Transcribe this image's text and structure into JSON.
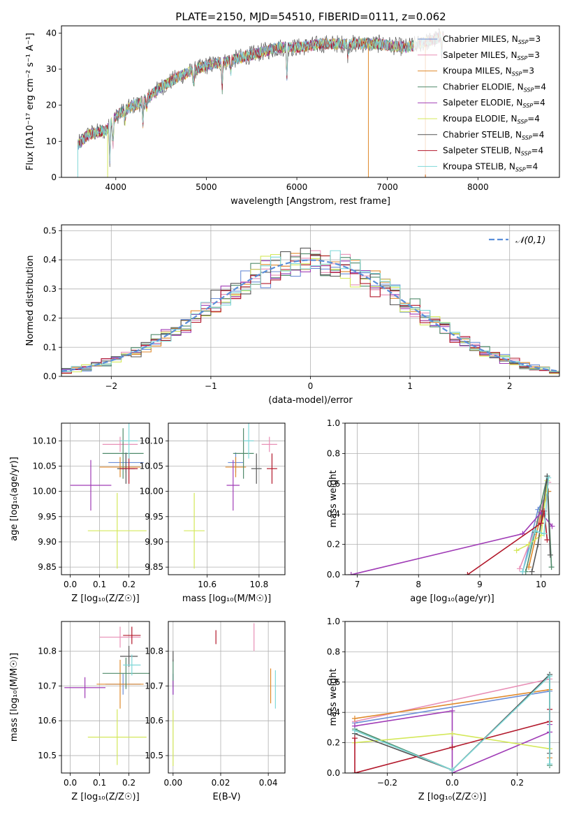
{
  "figure": {
    "title": "PLATE=2150, MJD=54510, FIBERID=0111, z=0.062"
  },
  "colors": {
    "Chabrier MILES": "#6b8ed6",
    "Salpeter MILES": "#e88fb6",
    "Kroupa MILES": "#e08a2c",
    "Chabrier ELODIE": "#4f8a6a",
    "Salpeter ELODIE": "#a03cb6",
    "Kroupa ELODIE": "#d4e85a",
    "Chabrier STELIB": "#555555",
    "Salpeter STELIB": "#b2182b",
    "Kroupa STELIB": "#7ed8d8",
    "normal_curve": "#5b8fd9"
  },
  "chart_data": [
    {
      "id": "spectrum",
      "type": "line",
      "xlabel": "wavelength [Angstrom, rest frame]",
      "ylabel": "Flux [fλ10⁻¹⁷ erg cm⁻² s⁻¹ A⁻¹]",
      "xlim": [
        3400,
        8900
      ],
      "ylim": [
        0,
        42
      ],
      "xticks": [
        4000,
        5000,
        6000,
        7000,
        8000
      ],
      "yticks": [
        0,
        10,
        20,
        30,
        40
      ],
      "legend_position": "right",
      "legend": [
        "Chabrier MILES, N_SSP=3",
        "Salpeter MILES, N_SSP=3",
        "Kroupa MILES, N_SSP=3",
        "Chabrier ELODIE, N_SSP=4",
        "Salpeter ELODIE, N_SSP=4",
        "Kroupa ELODIE, N_SSP=4",
        "Chabrier STELIB, N_SSP=4",
        "Salpeter STELIB, N_SSP=4",
        "Kroupa STELIB, N_SSP=4"
      ],
      "continuum": {
        "x": [
          3580,
          3700,
          3900,
          4000,
          4200,
          4300,
          4500,
          4700,
          5000,
          5200,
          5500,
          5800,
          6000,
          6300,
          6600,
          6900,
          7200,
          7500,
          7600
        ],
        "y": [
          9,
          12,
          13,
          17,
          20,
          21,
          25,
          28,
          31,
          32,
          34,
          36,
          36,
          37,
          37,
          37,
          36,
          38,
          39
        ]
      }
    },
    {
      "id": "residual_histogram",
      "type": "histogram",
      "xlabel": "(data-model)/error",
      "ylabel": "Normed distribution",
      "xlim": [
        -2.5,
        2.5
      ],
      "ylim": [
        0,
        0.52
      ],
      "xticks": [
        -2,
        -1,
        0,
        1,
        2
      ],
      "yticks": [
        0.0,
        0.1,
        0.2,
        0.3,
        0.4,
        0.5
      ],
      "legend": [
        "𝒩(0,1)"
      ],
      "bin_width": 0.1
    },
    {
      "id": "age_vs_Z",
      "type": "scatter",
      "xlabel": "Z [log₁₀(Z/Z☉)]",
      "ylabel": "age  [log₁₀(age/yr)]",
      "xlim": [
        -0.03,
        0.27
      ],
      "ylim": [
        9.835,
        10.135
      ],
      "xticks": [
        0.0,
        0.1,
        0.2
      ],
      "yticks": [
        9.85,
        9.9,
        9.95,
        10.0,
        10.05,
        10.1
      ],
      "points": [
        {
          "model": "Chabrier MILES",
          "x": 0.19,
          "y": 10.057,
          "xerr": 0.06,
          "yerr": 0.02
        },
        {
          "model": "Salpeter MILES",
          "x": 0.17,
          "y": 10.093,
          "xerr": 0.06,
          "yerr": 0.015
        },
        {
          "model": "Kroupa MILES",
          "x": 0.17,
          "y": 10.048,
          "xerr": 0.07,
          "yerr": 0.02
        },
        {
          "model": "Chabrier ELODIE",
          "x": 0.18,
          "y": 10.075,
          "xerr": 0.07,
          "yerr": 0.05
        },
        {
          "model": "Salpeter ELODIE",
          "x": 0.07,
          "y": 10.012,
          "xerr": 0.07,
          "yerr": 0.05
        },
        {
          "model": "Kroupa ELODIE",
          "x": 0.16,
          "y": 9.922,
          "xerr": 0.1,
          "yerr": 0.075
        },
        {
          "model": "Chabrier STELIB",
          "x": 0.19,
          "y": 10.045,
          "xerr": 0.03,
          "yerr": 0.03
        },
        {
          "model": "Salpeter STELIB",
          "x": 0.2,
          "y": 10.045,
          "xerr": 0.03,
          "yerr": 0.03
        },
        {
          "model": "Kroupa STELIB",
          "x": 0.2,
          "y": 10.1,
          "xerr": 0.03,
          "yerr": 0.035
        }
      ]
    },
    {
      "id": "age_vs_mass",
      "type": "scatter",
      "xlabel": "mass [log₁₀(M/M☉)]",
      "ylabel": "",
      "xlim": [
        10.45,
        10.9
      ],
      "ylim": [
        9.835,
        10.135
      ],
      "xticks": [
        10.6,
        10.8
      ],
      "yticks": [
        9.85,
        9.9,
        9.95,
        10.0,
        10.05,
        10.1
      ],
      "points": [
        {
          "model": "Chabrier MILES",
          "x": 10.71,
          "y": 10.057,
          "xerr": 0.03,
          "yerr": 0.02
        },
        {
          "model": "Salpeter MILES",
          "x": 10.84,
          "y": 10.093,
          "xerr": 0.03,
          "yerr": 0.015
        },
        {
          "model": "Kroupa MILES",
          "x": 10.71,
          "y": 10.048,
          "xerr": 0.04,
          "yerr": 0.02
        },
        {
          "model": "Chabrier ELODIE",
          "x": 10.74,
          "y": 10.075,
          "xerr": 0.04,
          "yerr": 0.05
        },
        {
          "model": "Salpeter ELODIE",
          "x": 10.7,
          "y": 10.012,
          "xerr": 0.025,
          "yerr": 0.05
        },
        {
          "model": "Kroupa ELODIE",
          "x": 10.55,
          "y": 9.922,
          "xerr": 0.04,
          "yerr": 0.075
        },
        {
          "model": "Chabrier STELIB",
          "x": 10.79,
          "y": 10.045,
          "xerr": 0.02,
          "yerr": 0.03
        },
        {
          "model": "Salpeter STELIB",
          "x": 10.85,
          "y": 10.045,
          "xerr": 0.02,
          "yerr": 0.03
        },
        {
          "model": "Kroupa STELIB",
          "x": 10.76,
          "y": 10.1,
          "xerr": 0.02,
          "yerr": 0.035
        }
      ]
    },
    {
      "id": "mass_vs_Z",
      "type": "scatter",
      "xlabel": "Z [log₁₀(Z/Z☉)]",
      "ylabel": "mass [log₁₀(M/M☉)]",
      "xlim": [
        -0.03,
        0.27
      ],
      "ylim": [
        10.45,
        10.885
      ],
      "xticks": [
        0.0,
        0.1,
        0.2
      ],
      "yticks": [
        10.5,
        10.6,
        10.7,
        10.8
      ],
      "points": [
        {
          "model": "Chabrier MILES",
          "x": 0.18,
          "y": 10.705,
          "xerr": 0.06,
          "yerr": 0.03
        },
        {
          "model": "Salpeter MILES",
          "x": 0.17,
          "y": 10.84,
          "xerr": 0.07,
          "yerr": 0.03
        },
        {
          "model": "Kroupa MILES",
          "x": 0.17,
          "y": 10.705,
          "xerr": 0.08,
          "yerr": 0.07
        },
        {
          "model": "Chabrier ELODIE",
          "x": 0.19,
          "y": 10.736,
          "xerr": 0.08,
          "yerr": 0.045
        },
        {
          "model": "Salpeter ELODIE",
          "x": 0.05,
          "y": 10.695,
          "xerr": 0.07,
          "yerr": 0.03
        },
        {
          "model": "Kroupa ELODIE",
          "x": 0.16,
          "y": 10.553,
          "xerr": 0.1,
          "yerr": 0.08
        },
        {
          "model": "Chabrier STELIB",
          "x": 0.2,
          "y": 10.785,
          "xerr": 0.03,
          "yerr": 0.03
        },
        {
          "model": "Salpeter STELIB",
          "x": 0.21,
          "y": 10.845,
          "xerr": 0.03,
          "yerr": 0.025
        },
        {
          "model": "Kroupa STELIB",
          "x": 0.21,
          "y": 10.76,
          "xerr": 0.03,
          "yerr": 0.03
        }
      ]
    },
    {
      "id": "mass_vs_ebv",
      "type": "scatter",
      "xlabel": "E(B-V)",
      "ylabel": "",
      "xlim": [
        -0.002,
        0.047
      ],
      "ylim": [
        10.45,
        10.885
      ],
      "xticks": [
        0.0,
        0.02,
        0.04
      ],
      "yticks": [
        10.5,
        10.6,
        10.7,
        10.8
      ],
      "points": [
        {
          "model": "Chabrier MILES",
          "x": 0.0,
          "y": 10.705,
          "xerr": 0.0,
          "yerr": 0.03
        },
        {
          "model": "Salpeter MILES",
          "x": 0.034,
          "y": 10.84,
          "xerr": 0.0,
          "yerr": 0.04
        },
        {
          "model": "Kroupa MILES",
          "x": 0.041,
          "y": 10.7,
          "xerr": 0.0,
          "yerr": 0.05
        },
        {
          "model": "Chabrier ELODIE",
          "x": 0.0,
          "y": 10.736,
          "xerr": 0.0,
          "yerr": 0.04
        },
        {
          "model": "Salpeter ELODIE",
          "x": 0.0,
          "y": 10.695,
          "xerr": 0.0,
          "yerr": 0.02
        },
        {
          "model": "Kroupa ELODIE",
          "x": 0.0,
          "y": 10.55,
          "xerr": 0.0,
          "yerr": 0.08
        },
        {
          "model": "Chabrier STELIB",
          "x": 0.0,
          "y": 10.785,
          "xerr": 0.0,
          "yerr": 0.015
        },
        {
          "model": "Salpeter STELIB",
          "x": 0.018,
          "y": 10.84,
          "xerr": 0.0,
          "yerr": 0.02
        },
        {
          "model": "Kroupa STELIB",
          "x": 0.043,
          "y": 10.69,
          "xerr": 0.0,
          "yerr": 0.055
        }
      ]
    },
    {
      "id": "mass_weight_vs_age",
      "type": "line",
      "xlabel": "age  [log₁₀(age/yr)]",
      "ylabel": "mass weight",
      "xlim": [
        6.8,
        10.3
      ],
      "ylim": [
        0,
        1.0
      ],
      "xticks": [
        7,
        8,
        9,
        10
      ],
      "yticks": [
        0.0,
        0.2,
        0.4,
        0.6,
        0.8,
        1.0
      ],
      "series": [
        {
          "model": "Chabrier MILES",
          "x": [
            9.7,
            9.95,
            10.12
          ],
          "y": [
            0.02,
            0.43,
            0.55
          ]
        },
        {
          "model": "Salpeter MILES",
          "x": [
            9.65,
            9.95,
            10.12
          ],
          "y": [
            0.04,
            0.35,
            0.61
          ]
        },
        {
          "model": "Kroupa MILES",
          "x": [
            9.8,
            10.0,
            10.12
          ],
          "y": [
            0.05,
            0.4,
            0.55
          ]
        },
        {
          "model": "Chabrier ELODIE",
          "x": [
            9.75,
            9.9,
            10.1,
            10.17
          ],
          "y": [
            0.02,
            0.28,
            0.65,
            0.05
          ]
        },
        {
          "model": "Salpeter ELODIE",
          "x": [
            6.9,
            9.7,
            10.0,
            10.18
          ],
          "y": [
            0.0,
            0.27,
            0.41,
            0.32
          ]
        },
        {
          "model": "Kroupa ELODIE",
          "x": [
            9.6,
            9.8,
            10.0,
            10.1
          ],
          "y": [
            0.16,
            0.2,
            0.26,
            0.62
          ]
        },
        {
          "model": "Chabrier STELIB",
          "x": [
            9.85,
            9.95,
            10.1,
            10.15
          ],
          "y": [
            0.02,
            0.2,
            0.65,
            0.13
          ]
        },
        {
          "model": "Salpeter STELIB",
          "x": [
            8.8,
            10.0,
            10.05,
            10.1
          ],
          "y": [
            0.0,
            0.34,
            0.42,
            0.23
          ]
        },
        {
          "model": "Kroupa STELIB",
          "x": [
            9.7,
            9.9,
            10.05,
            10.12
          ],
          "y": [
            0.02,
            0.29,
            0.27,
            0.64
          ]
        }
      ]
    },
    {
      "id": "mass_weight_vs_Z",
      "type": "line",
      "xlabel": "Z [log₁₀(Z/Z☉)]",
      "ylabel": "mass weight",
      "xlim": [
        -0.33,
        0.33
      ],
      "ylim": [
        0,
        1.0
      ],
      "xticks": [
        -0.2,
        0.0,
        0.2
      ],
      "yticks": [
        0.0,
        0.2,
        0.4,
        0.6,
        0.8,
        1.0
      ],
      "series": [
        {
          "model": "Chabrier MILES",
          "x": [
            -0.3,
            0.3
          ],
          "y": [
            0.33,
            0.54
          ]
        },
        {
          "model": "Salpeter MILES",
          "x": [
            -0.3,
            0.3
          ],
          "y": [
            0.34,
            0.62
          ]
        },
        {
          "model": "Kroupa MILES",
          "x": [
            -0.3,
            0.3,
            0.3
          ],
          "y": [
            0.36,
            0.55,
            0.1
          ]
        },
        {
          "model": "Chabrier ELODIE",
          "x": [
            -0.3,
            0.0,
            0.3,
            0.3
          ],
          "y": [
            0.29,
            0.02,
            0.65,
            0.05
          ]
        },
        {
          "model": "Salpeter ELODIE",
          "x": [
            -0.3,
            0.0,
            0.0,
            0.3,
            0.3
          ],
          "y": [
            0.31,
            0.41,
            0.0,
            0.27,
            0.32
          ]
        },
        {
          "model": "Kroupa ELODIE",
          "x": [
            -0.3,
            0.0,
            0.3
          ],
          "y": [
            0.2,
            0.26,
            0.16
          ]
        },
        {
          "model": "Chabrier STELIB",
          "x": [
            -0.3,
            0.0,
            0.3,
            0.3
          ],
          "y": [
            0.26,
            0.02,
            0.65,
            0.13
          ]
        },
        {
          "model": "Salpeter STELIB",
          "x": [
            -0.3,
            -0.3,
            0.0,
            0.3,
            0.3
          ],
          "y": [
            0.23,
            0.0,
            0.17,
            0.34,
            0.42
          ]
        },
        {
          "model": "Kroupa STELIB",
          "x": [
            -0.3,
            0.0,
            0.3,
            0.3
          ],
          "y": [
            0.28,
            0.02,
            0.64,
            0.06
          ]
        }
      ]
    }
  ]
}
